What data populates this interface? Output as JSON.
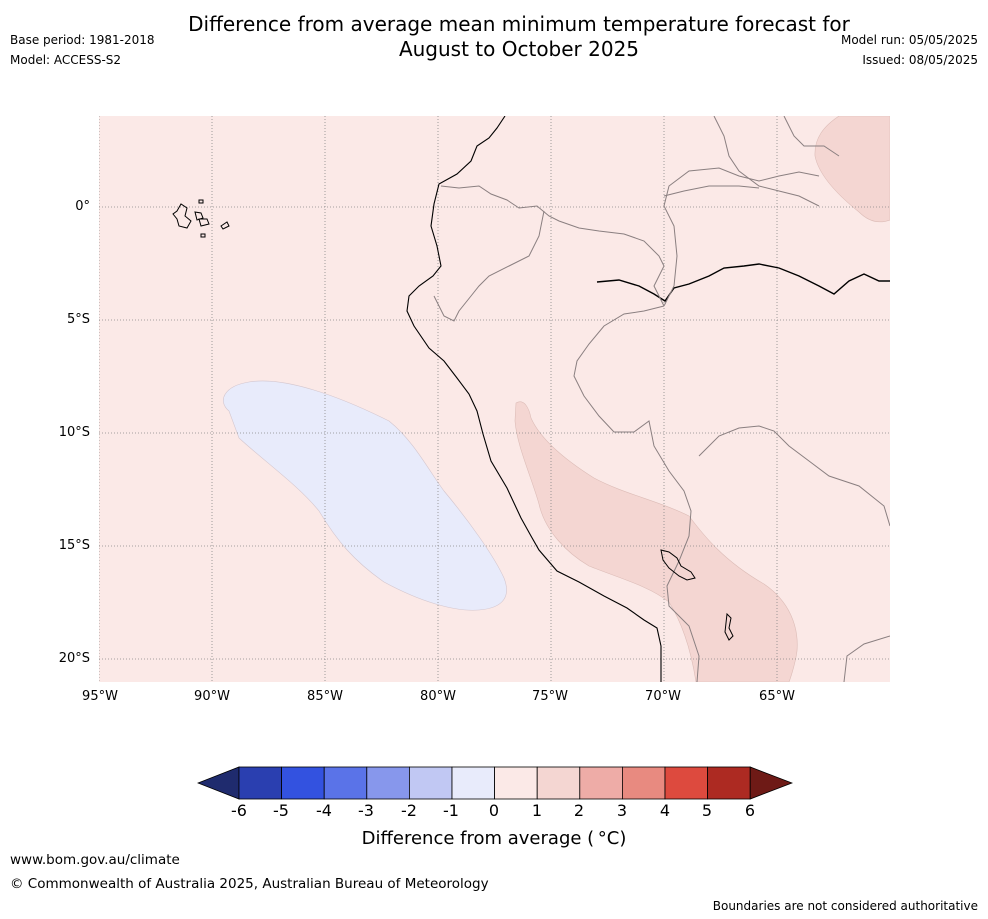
{
  "title_line1": "Difference from average mean minimum temperature forecast for",
  "title_line2": "August to October 2025",
  "base_period": "Base period: 1981-2018",
  "model": "Model: ACCESS-S2",
  "model_run": "Model run: 05/05/2025",
  "issued": "Issued: 08/05/2025",
  "lat_labels": [
    "0°",
    "5°S",
    "10°S",
    "15°S",
    "20°S"
  ],
  "lon_labels": [
    "95°W",
    "90°W",
    "85°W",
    "80°W",
    "75°W",
    "70°W",
    "65°W"
  ],
  "colorbar": {
    "title": "Difference from average ( °C)",
    "ticks": [
      "-6",
      "-5",
      "-4",
      "-3",
      "-2",
      "-1",
      "0",
      "1",
      "2",
      "3",
      "4",
      "5",
      "6"
    ],
    "colors": {
      "below_-6": "#1f2b6e",
      "-6_-5": "#2a3fb0",
      "-5_-4": "#3352e0",
      "-4_-3": "#5a73e8",
      "-3_-2": "#8797ec",
      "-2_-1": "#c1c8f3",
      "-1_0": "#e8ebfb",
      "0_1": "#fbe9e7",
      "1_2": "#f4d6d2",
      "2_3": "#eeaca7",
      "3_4": "#e88a80",
      "4_5": "#dd4a3e",
      "5_6": "#ad2a22",
      "above_6": "#6e1a16"
    }
  },
  "map_fill_colors": {
    "background": "#fbe9e7",
    "cool_anomaly": "#e8ebfb",
    "warm_anomaly": "#f4d6d2"
  },
  "website": "www.bom.gov.au/climate",
  "copyright": "© Commonwealth of Australia 2025, Australian Bureau of Meteorology",
  "disclaimer": "Boundaries are not considered authoritative"
}
